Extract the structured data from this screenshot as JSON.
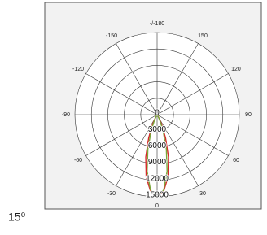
{
  "chart_data": {
    "type": "polar",
    "annotation": "15⁰",
    "x": [
      -40,
      -35,
      -30,
      -25,
      -20,
      -15,
      -10,
      -5,
      0,
      5,
      10,
      15,
      20,
      25,
      30,
      35,
      40
    ],
    "series": [
      {
        "color": "#d42a2a",
        "values": [
          0,
          150,
          600,
          2000,
          4500,
          8000,
          11500,
          14000,
          15000,
          14000,
          11500,
          8000,
          4500,
          2000,
          600,
          150,
          0
        ]
      },
      {
        "color": "#7aa83a",
        "values": [
          0,
          0,
          300,
          1200,
          3200,
          6500,
          10500,
          13800,
          15000,
          13800,
          10500,
          6500,
          3200,
          1200,
          300,
          0,
          0
        ]
      }
    ],
    "xticks": [
      {
        "value": -180,
        "label": "-/-180"
      },
      -150,
      -120,
      -90,
      -60,
      -30,
      0,
      30,
      60,
      90,
      120,
      150
    ],
    "ylim": [
      0,
      15000
    ],
    "yticks": [
      0,
      3000,
      6000,
      9000,
      12000,
      15000
    ],
    "grid": true
  }
}
